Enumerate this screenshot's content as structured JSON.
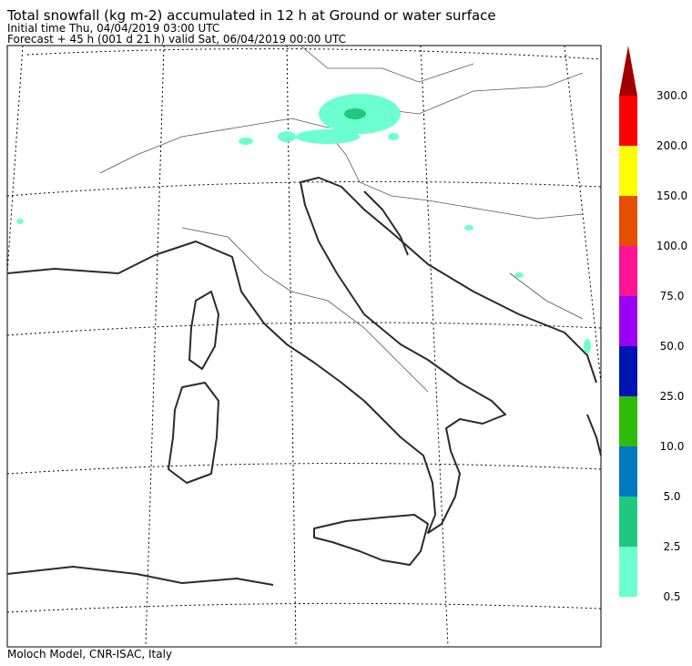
{
  "header": {
    "title": "Total snowfall (kg m-2) accumulated in  12 h at Ground or water surface",
    "initial_time": "Initial time  Thu, 04/04/2019  03:00 UTC",
    "forecast": "Forecast  +  45 h  (001 d 21 h)  valid Sat, 06/04/2019 00:00 UTC"
  },
  "colorbar": {
    "labels": [
      "0.5",
      "2.5",
      "5.0",
      "10.0",
      "25.0",
      "50.0",
      "75.0",
      "100.0",
      "150.0",
      "200.0",
      "300.0"
    ],
    "colors": [
      "#6cffd0",
      "#1ec97f",
      "#0078c0",
      "#30bb0a",
      "#0014b4",
      "#9a00f5",
      "#ff1493",
      "#e64e04",
      "#ffff00",
      "#ff0000"
    ],
    "extend_color": "#a00000"
  },
  "footer": "Moloch Model, CNR-ISAC, Italy"
}
